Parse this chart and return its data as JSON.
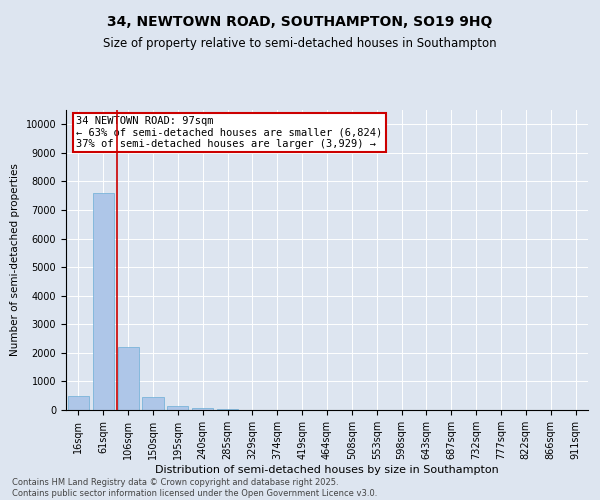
{
  "title_line1": "34, NEWTOWN ROAD, SOUTHAMPTON, SO19 9HQ",
  "title_line2": "Size of property relative to semi-detached houses in Southampton",
  "xlabel": "Distribution of semi-detached houses by size in Southampton",
  "ylabel": "Number of semi-detached properties",
  "categories": [
    "16sqm",
    "61sqm",
    "106sqm",
    "150sqm",
    "195sqm",
    "240sqm",
    "285sqm",
    "329sqm",
    "374sqm",
    "419sqm",
    "464sqm",
    "508sqm",
    "553sqm",
    "598sqm",
    "643sqm",
    "687sqm",
    "732sqm",
    "777sqm",
    "822sqm",
    "866sqm",
    "911sqm"
  ],
  "values": [
    500,
    7600,
    2200,
    450,
    150,
    60,
    20,
    10,
    5,
    3,
    2,
    1,
    1,
    1,
    0,
    0,
    0,
    0,
    0,
    0,
    0
  ],
  "bar_color": "#aec6e8",
  "bar_edge_color": "#6baed6",
  "vline_x": 1.56,
  "vline_color": "#cc0000",
  "annotation_text": "34 NEWTOWN ROAD: 97sqm\n← 63% of semi-detached houses are smaller (6,824)\n37% of semi-detached houses are larger (3,929) →",
  "ylim": [
    0,
    10500
  ],
  "yticks": [
    0,
    1000,
    2000,
    3000,
    4000,
    5000,
    6000,
    7000,
    8000,
    9000,
    10000
  ],
  "bg_color": "#dde5f0",
  "plot_bg_color": "#dde5f0",
  "footer_text": "Contains HM Land Registry data © Crown copyright and database right 2025.\nContains public sector information licensed under the Open Government Licence v3.0.",
  "title_fontsize": 10,
  "subtitle_fontsize": 8.5,
  "tick_fontsize": 7,
  "ylabel_fontsize": 7.5,
  "xlabel_fontsize": 8,
  "annotation_fontsize": 7.5
}
